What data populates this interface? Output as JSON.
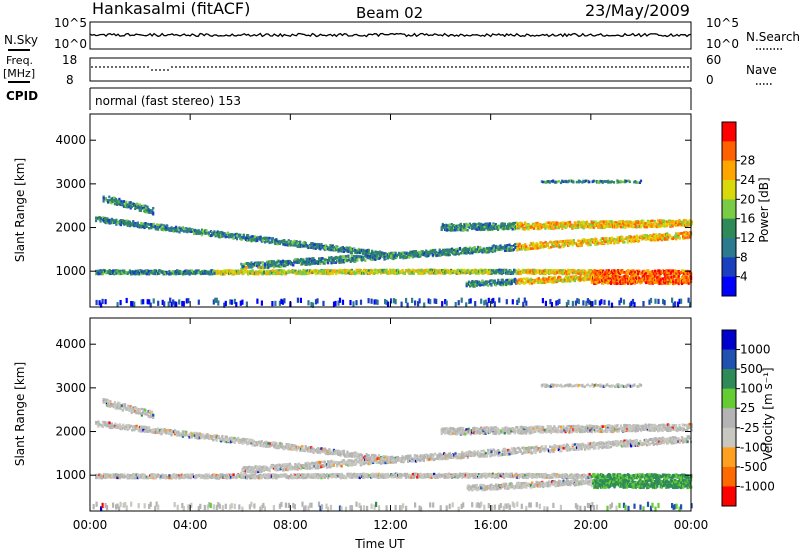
{
  "header": {
    "station": "Hankasalmi (fitACF)",
    "beam": "Beam 02",
    "date": "23/May/2009"
  },
  "top_panels": {
    "nsky_label": "N.Sky",
    "nsky_top": "10^5",
    "nsky_bottom": "10^0",
    "nsearch_label": "N.Search",
    "nsearch_top": "10^5",
    "nsearch_bottom": "10^0",
    "freq_label": "Freq.",
    "freq_unit": "[MHz]",
    "freq_top": "18",
    "freq_bottom": "8",
    "nave_label": "Nave",
    "nave_top": "60",
    "nave_bottom": "0",
    "cpid_label": "CPID",
    "cpid_text": "normal (fast stereo) 153"
  },
  "colors": {
    "power": [
      "#0000ff",
      "#1a40c0",
      "#2c7a90",
      "#2e8b57",
      "#7acc44",
      "#d8d80a",
      "#ffa500",
      "#ff6000",
      "#ff0000"
    ],
    "velocity": [
      "#ff0000",
      "#ff6a00",
      "#ffa020",
      "#c8c8c0",
      "#b4b4b4",
      "#66cc33",
      "#2e8b57",
      "#2050b0",
      "#0000cc"
    ]
  },
  "chart_data": [
    {
      "type": "heatmap",
      "title": "Power",
      "ylabel": "Slant Range [km]",
      "xlabel": "",
      "xlim": [
        0,
        24
      ],
      "ylim": [
        180,
        4600
      ],
      "yticks": [
        "1000",
        "2000",
        "3000",
        "4000"
      ],
      "colorbar": {
        "label": "Power [dB]",
        "ticks": [
          "4",
          "8",
          "12",
          "16",
          "20",
          "24",
          "28"
        ]
      }
    },
    {
      "type": "heatmap",
      "title": "Velocity",
      "ylabel": "Slant Range [km]",
      "xlabel": "Time UT",
      "xlim": [
        0,
        24
      ],
      "ylim": [
        180,
        4600
      ],
      "xticks": [
        "00:00",
        "04:00",
        "08:00",
        "12:00",
        "16:00",
        "20:00",
        "00:00"
      ],
      "yticks": [
        "1000",
        "2000",
        "3000",
        "4000"
      ],
      "colorbar": {
        "label": "Velocity [m s⁻¹]",
        "ticks": [
          "1000",
          "500",
          "100",
          "25",
          "-25",
          "-100",
          "-500",
          "-1000"
        ]
      }
    }
  ]
}
